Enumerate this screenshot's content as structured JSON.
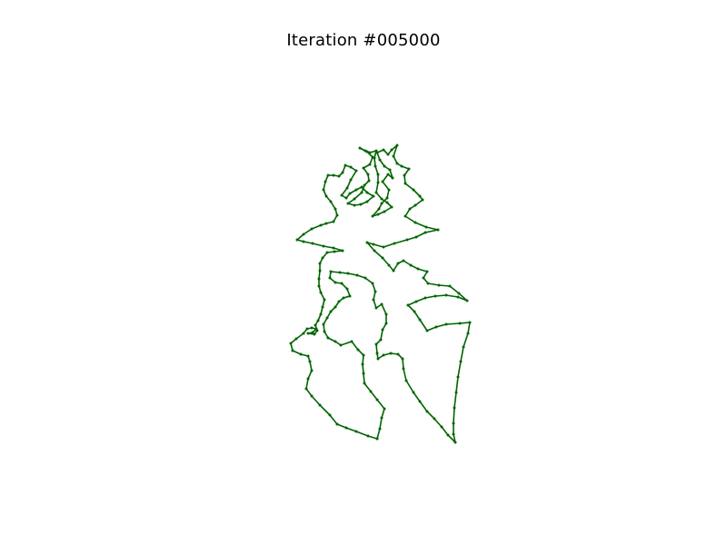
{
  "chart_data": {
    "type": "line",
    "title": "Iteration #005000",
    "xlabel": "",
    "ylabel": "",
    "axes_visible": false,
    "grid": false,
    "legend": "none",
    "line_color": "#006400",
    "marker_color": "#006400",
    "closed": true,
    "points": [
      [
        415,
        483
      ],
      [
        405,
        480
      ],
      [
        392,
        475
      ],
      [
        381,
        471
      ],
      [
        371,
        467
      ],
      [
        363,
        457
      ],
      [
        352,
        446
      ],
      [
        343,
        436
      ],
      [
        337,
        428
      ],
      [
        339,
        417
      ],
      [
        343,
        408
      ],
      [
        341,
        398
      ],
      [
        339,
        392
      ],
      [
        331,
        390
      ],
      [
        322,
        386
      ],
      [
        320,
        378
      ],
      [
        326,
        373
      ],
      [
        334,
        367
      ],
      [
        338,
        362
      ],
      [
        343,
        361
      ],
      [
        348,
        362
      ],
      [
        344,
        366
      ],
      [
        339,
        367
      ],
      [
        346,
        368
      ],
      [
        349,
        364
      ],
      [
        347,
        358
      ],
      [
        350,
        353
      ],
      [
        353,
        346
      ],
      [
        355,
        338
      ],
      [
        357,
        330
      ],
      [
        353,
        322
      ],
      [
        351,
        315
      ],
      [
        351,
        307
      ],
      [
        352,
        298
      ],
      [
        352,
        290
      ],
      [
        355,
        284
      ],
      [
        360,
        278
      ],
      [
        368,
        277
      ],
      [
        377,
        276
      ],
      [
        367,
        273
      ],
      [
        356,
        271
      ],
      [
        344,
        268
      ],
      [
        334,
        266
      ],
      [
        327,
        264
      ],
      [
        334,
        258
      ],
      [
        343,
        252
      ],
      [
        353,
        248
      ],
      [
        359,
        246
      ],
      [
        367,
        244
      ],
      [
        371,
        237
      ],
      [
        369,
        230
      ],
      [
        364,
        222
      ],
      [
        359,
        216
      ],
      [
        356,
        209
      ],
      [
        358,
        200
      ],
      [
        361,
        193
      ],
      [
        367,
        193
      ],
      [
        373,
        194
      ],
      [
        377,
        190
      ],
      [
        380,
        182
      ],
      [
        386,
        184
      ],
      [
        392,
        188
      ],
      [
        386,
        198
      ],
      [
        382,
        207
      ],
      [
        376,
        215
      ],
      [
        381,
        218
      ],
      [
        385,
        213
      ],
      [
        392,
        209
      ],
      [
        398,
        206
      ],
      [
        404,
        212
      ],
      [
        411,
        216
      ],
      [
        404,
        222
      ],
      [
        397,
        225
      ],
      [
        390,
        226
      ],
      [
        383,
        224
      ],
      [
        390,
        219
      ],
      [
        398,
        212
      ],
      [
        401,
        204
      ],
      [
        406,
        199
      ],
      [
        405,
        192
      ],
      [
        400,
        185
      ],
      [
        407,
        181
      ],
      [
        410,
        173
      ],
      [
        404,
        167
      ],
      [
        396,
        163
      ],
      [
        402,
        166
      ],
      [
        407,
        168
      ],
      [
        414,
        166
      ],
      [
        412,
        174
      ],
      [
        413,
        183
      ],
      [
        416,
        192
      ],
      [
        416,
        201
      ],
      [
        414,
        212
      ],
      [
        420,
        219
      ],
      [
        426,
        223
      ],
      [
        431,
        228
      ],
      [
        423,
        233
      ],
      [
        416,
        236
      ],
      [
        410,
        238
      ],
      [
        417,
        230
      ],
      [
        420,
        224
      ],
      [
        426,
        218
      ],
      [
        428,
        209
      ],
      [
        421,
        200
      ],
      [
        427,
        192
      ],
      [
        432,
        196
      ],
      [
        429,
        187
      ],
      [
        423,
        183
      ],
      [
        418,
        176
      ],
      [
        415,
        168
      ],
      [
        422,
        165
      ],
      [
        427,
        170
      ],
      [
        431,
        165
      ],
      [
        437,
        160
      ],
      [
        433,
        172
      ],
      [
        437,
        180
      ],
      [
        442,
        183
      ],
      [
        450,
        186
      ],
      [
        445,
        193
      ],
      [
        446,
        202
      ],
      [
        455,
        209
      ],
      [
        462,
        216
      ],
      [
        465,
        220
      ],
      [
        457,
        226
      ],
      [
        451,
        230
      ],
      [
        446,
        238
      ],
      [
        457,
        245
      ],
      [
        469,
        250
      ],
      [
        482,
        253
      ],
      [
        468,
        256
      ],
      [
        458,
        261
      ],
      [
        448,
        264
      ],
      [
        434,
        268
      ],
      [
        422,
        272
      ],
      [
        411,
        269
      ],
      [
        404,
        267
      ],
      [
        412,
        276
      ],
      [
        421,
        284
      ],
      [
        428,
        292
      ],
      [
        433,
        298
      ],
      [
        438,
        290
      ],
      [
        444,
        287
      ],
      [
        452,
        292
      ],
      [
        460,
        296
      ],
      [
        470,
        299
      ],
      [
        466,
        306
      ],
      [
        471,
        312
      ],
      [
        483,
        314
      ],
      [
        495,
        315
      ],
      [
        505,
        323
      ],
      [
        514,
        331
      ],
      [
        504,
        327
      ],
      [
        491,
        325
      ],
      [
        479,
        326
      ],
      [
        468,
        328
      ],
      [
        458,
        332
      ],
      [
        449,
        336
      ],
      [
        456,
        343
      ],
      [
        462,
        352
      ],
      [
        470,
        364
      ],
      [
        480,
        360
      ],
      [
        491,
        357
      ],
      [
        506,
        356
      ],
      [
        517,
        355
      ],
      [
        515,
        367
      ],
      [
        510,
        382
      ],
      [
        507,
        398
      ],
      [
        504,
        415
      ],
      [
        502,
        432
      ],
      [
        500,
        449
      ],
      [
        499,
        466
      ],
      [
        499,
        478
      ],
      [
        501,
        487
      ],
      [
        493,
        479
      ],
      [
        486,
        470
      ],
      [
        478,
        461
      ],
      [
        470,
        453
      ],
      [
        462,
        442
      ],
      [
        455,
        432
      ],
      [
        447,
        419
      ],
      [
        444,
        406
      ],
      [
        443,
        395
      ],
      [
        438,
        390
      ],
      [
        430,
        389
      ],
      [
        422,
        391
      ],
      [
        416,
        395
      ],
      [
        415,
        389
      ],
      [
        414,
        379
      ],
      [
        419,
        374
      ],
      [
        421,
        363
      ],
      [
        425,
        356
      ],
      [
        425,
        346
      ],
      [
        420,
        335
      ],
      [
        414,
        339
      ],
      [
        411,
        330
      ],
      [
        413,
        321
      ],
      [
        410,
        312
      ],
      [
        402,
        306
      ],
      [
        393,
        303
      ],
      [
        383,
        301
      ],
      [
        374,
        300
      ],
      [
        364,
        299
      ],
      [
        363,
        306
      ],
      [
        369,
        311
      ],
      [
        376,
        312
      ],
      [
        382,
        318
      ],
      [
        385,
        326
      ],
      [
        378,
        328
      ],
      [
        373,
        332
      ],
      [
        369,
        338
      ],
      [
        364,
        343
      ],
      [
        360,
        350
      ],
      [
        356,
        357
      ],
      [
        357,
        365
      ],
      [
        361,
        372
      ],
      [
        369,
        376
      ],
      [
        375,
        380
      ],
      [
        387,
        376
      ],
      [
        394,
        385
      ],
      [
        400,
        391
      ],
      [
        399,
        401
      ],
      [
        400,
        411
      ],
      [
        401,
        422
      ],
      [
        408,
        431
      ],
      [
        415,
        440
      ],
      [
        423,
        450
      ],
      [
        420,
        460
      ],
      [
        418,
        472
      ],
      [
        415,
        483
      ]
    ]
  }
}
